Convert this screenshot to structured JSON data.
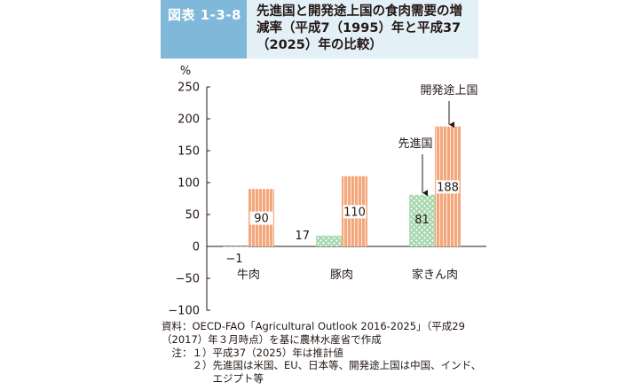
{
  "figure": {
    "tag": "図表 1-3-8",
    "title_lines": [
      "先進国と開発途上国の食肉需要の増",
      "減率（平成7（1995）年と平成37",
      "（2025）年の比較）"
    ]
  },
  "chart_data": {
    "type": "bar",
    "title": "先進国と開発途上国の食肉需要の増減率（平成7（1995）年と平成37（2025）年の比較）",
    "ylabel": "%",
    "ylim": [
      -100,
      250
    ],
    "yticks": [
      -100,
      -50,
      0,
      50,
      100,
      150,
      200,
      250
    ],
    "categories": [
      "牛肉",
      "豚肉",
      "家きん肉"
    ],
    "series": [
      {
        "name": "先進国",
        "values": [
          -1,
          17,
          81
        ],
        "value_labels": [
          "−1",
          "17",
          "81"
        ],
        "color": "#a8d8b0",
        "pattern": "dots"
      },
      {
        "name": "開発途上国",
        "values": [
          90,
          110,
          188
        ],
        "value_labels": [
          "90",
          "110",
          "188"
        ],
        "color": "#f4a77a",
        "pattern": "stripes"
      }
    ],
    "callouts": [
      {
        "series": "先進国",
        "text": "先進国"
      },
      {
        "series": "開発途上国",
        "text": "開発途上国"
      }
    ]
  },
  "notes": {
    "source_1": "資料：OECD-FAO「Agricultural Outlook 2016-2025」（平成29",
    "source_2": "（2017）年３月時点）を基に農林水産省で作成",
    "note_1": "　注：１）平成37（2025）年は推計値",
    "note_2": "　　　２）先進国は米国、EU、日本等、開発途上国は中国、インド、",
    "note_3": "　　　　　エジプト等"
  }
}
